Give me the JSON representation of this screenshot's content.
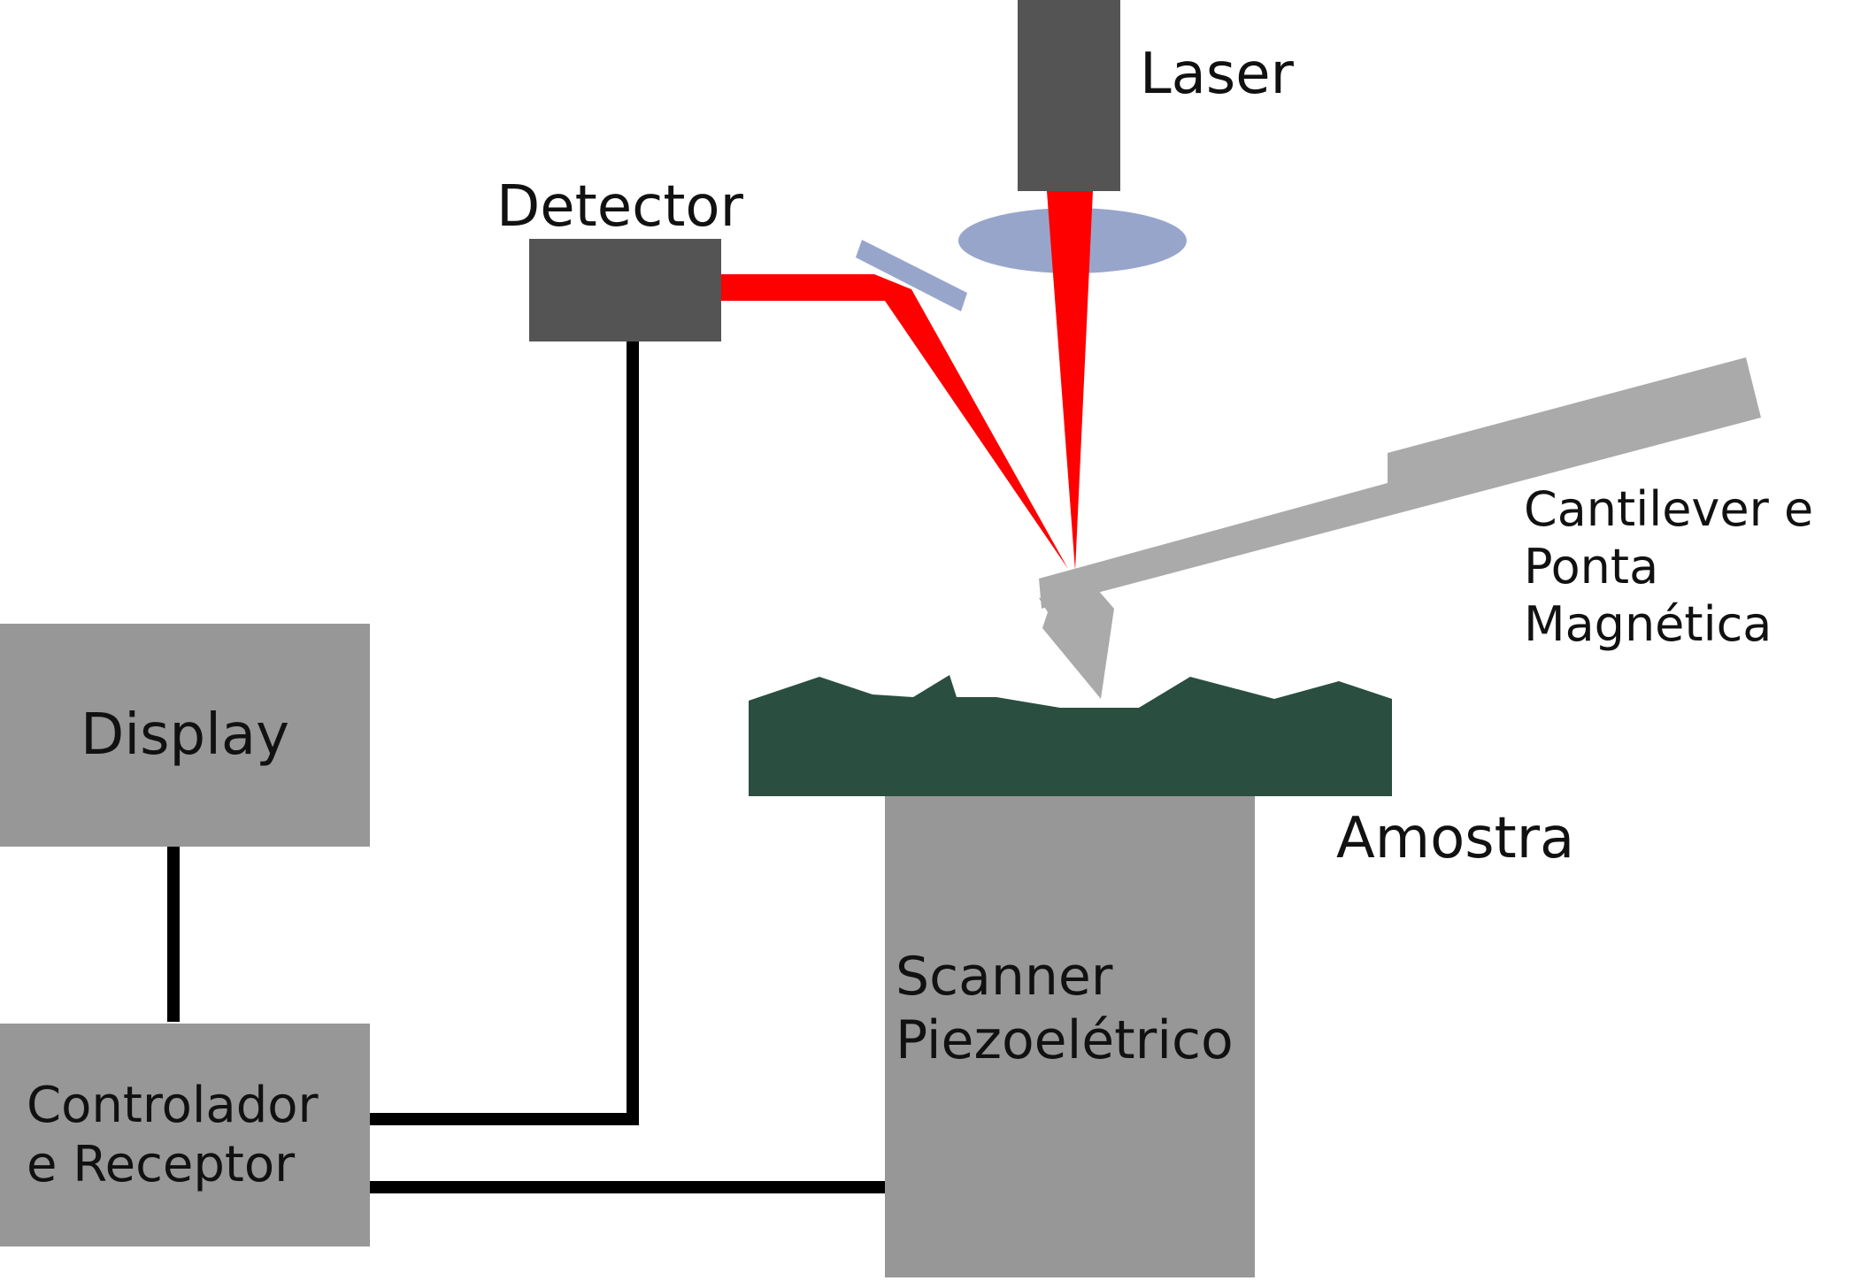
{
  "labels": {
    "laser": "Laser",
    "detector": "Detector",
    "display": "Display",
    "cantilever_line1": "Cantilever e",
    "cantilever_line2": "Ponta",
    "cantilever_line3": "Magnética",
    "sample": "Amostra",
    "scanner_line1": "Scanner",
    "scanner_line2": "Piezoelétrico",
    "controller_line1": "Controlador",
    "controller_line2": "e Receptor"
  },
  "colors": {
    "dark_block": "#545454",
    "gray_block": "#979797",
    "cantilever": "#aaaaaa",
    "laser_beam": "#ff0000",
    "lens_mirror": "#98a5cb",
    "sample": "#2a4e40",
    "wire": "#000000"
  }
}
